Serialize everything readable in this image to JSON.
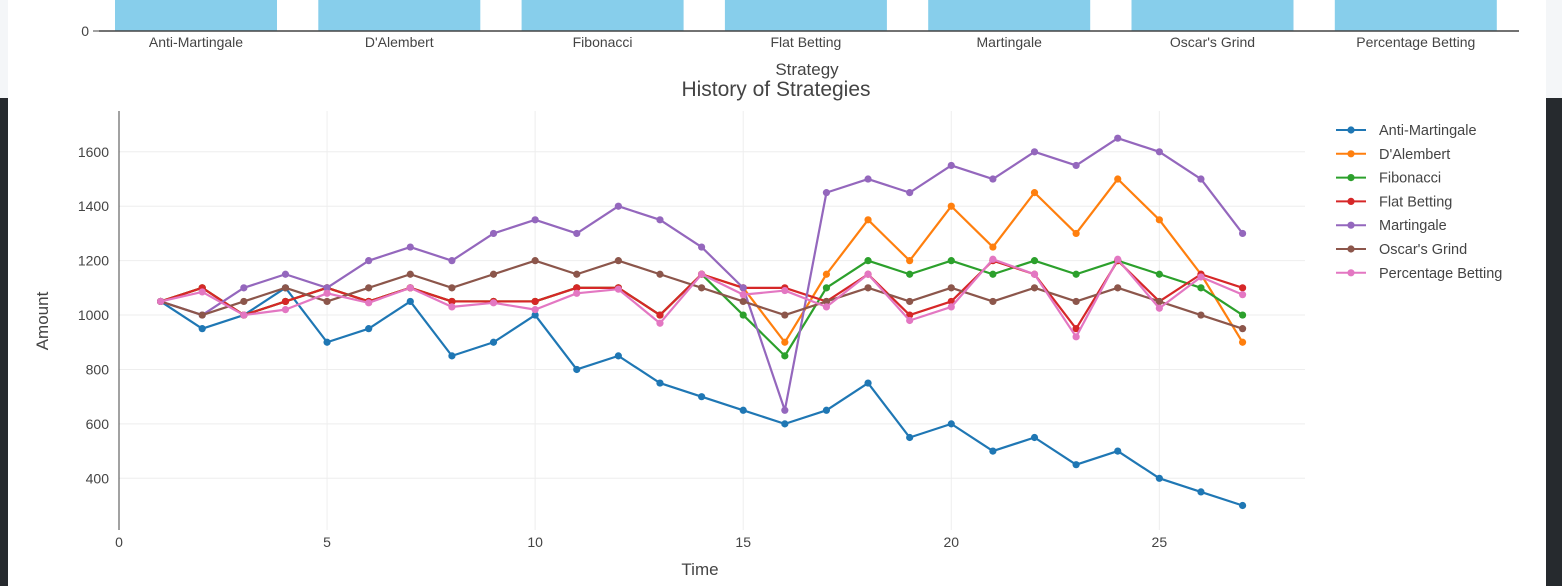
{
  "chart_data": [
    {
      "type": "bar",
      "xlabel": "Strategy",
      "categories": [
        "Anti-Martingale",
        "D'Alembert",
        "Fibonacci",
        "Flat Betting",
        "Martingale",
        "Oscar's Grind",
        "Percentage Betting"
      ],
      "y_tick_labels": [
        "0"
      ],
      "bar_color": "#87ceeb"
    },
    {
      "type": "line",
      "title": "History of Strategies",
      "xlabel": "Time",
      "ylabel": "Amount",
      "xlim": [
        0,
        28.5
      ],
      "ylim": [
        210,
        1750
      ],
      "x_ticks": [
        0,
        5,
        10,
        15,
        20,
        25
      ],
      "y_ticks": [
        400,
        600,
        800,
        1000,
        1200,
        1400,
        1600
      ],
      "grid": true,
      "legend_position": "right",
      "x": [
        1,
        2,
        3,
        4,
        5,
        6,
        7,
        8,
        9,
        10,
        11,
        12,
        13,
        14,
        15,
        16,
        17,
        18,
        19,
        20,
        21,
        22,
        23,
        24,
        25,
        26,
        27
      ],
      "series": [
        {
          "name": "Anti-Martingale",
          "color": "#1f77b4",
          "values": [
            1050,
            950,
            1000,
            1100,
            900,
            950,
            1050,
            850,
            900,
            1000,
            800,
            850,
            750,
            700,
            650,
            600,
            650,
            750,
            550,
            600,
            500,
            550,
            450,
            500,
            400,
            350,
            300
          ]
        },
        {
          "name": "D'Alembert",
          "color": "#ff7f0e",
          "values": [
            1050,
            1100,
            1000,
            1050,
            1100,
            1050,
            1100,
            1050,
            1050,
            1050,
            1100,
            1100,
            1000,
            1150,
            1100,
            900,
            1150,
            1350,
            1200,
            1400,
            1250,
            1450,
            1300,
            1500,
            1350,
            1150,
            900
          ]
        },
        {
          "name": "Fibonacci",
          "color": "#2ca02c",
          "values": [
            1050,
            1100,
            1000,
            1050,
            1100,
            1050,
            1100,
            1050,
            1050,
            1050,
            1100,
            1100,
            1000,
            1150,
            1000,
            850,
            1100,
            1200,
            1150,
            1200,
            1150,
            1200,
            1150,
            1200,
            1150,
            1100,
            1000
          ]
        },
        {
          "name": "Flat Betting",
          "color": "#d62728",
          "values": [
            1050,
            1100,
            1000,
            1050,
            1100,
            1050,
            1100,
            1050,
            1050,
            1050,
            1100,
            1100,
            1000,
            1150,
            1100,
            1100,
            1050,
            1150,
            1000,
            1050,
            1200,
            1150,
            950,
            1200,
            1050,
            1150,
            1100
          ]
        },
        {
          "name": "Martingale",
          "color": "#9467bd",
          "values": [
            1050,
            1000,
            1100,
            1150,
            1100,
            1200,
            1250,
            1200,
            1300,
            1350,
            1300,
            1400,
            1350,
            1250,
            1100,
            650,
            1450,
            1500,
            1450,
            1550,
            1500,
            1600,
            1550,
            1650,
            1600,
            1500,
            1300
          ]
        },
        {
          "name": "Oscar's Grind",
          "color": "#8c564b",
          "values": [
            1050,
            1000,
            1050,
            1100,
            1050,
            1100,
            1150,
            1100,
            1150,
            1200,
            1150,
            1200,
            1150,
            1100,
            1050,
            1000,
            1050,
            1100,
            1050,
            1100,
            1050,
            1100,
            1050,
            1100,
            1050,
            1000,
            950
          ]
        },
        {
          "name": "Percentage Betting",
          "color": "#e377c2",
          "values": [
            1050,
            1085,
            1000,
            1020,
            1080,
            1045,
            1100,
            1030,
            1045,
            1020,
            1080,
            1095,
            970,
            1150,
            1075,
            1090,
            1030,
            1150,
            980,
            1030,
            1205,
            1150,
            920,
            1205,
            1025,
            1140,
            1075
          ]
        }
      ]
    }
  ]
}
